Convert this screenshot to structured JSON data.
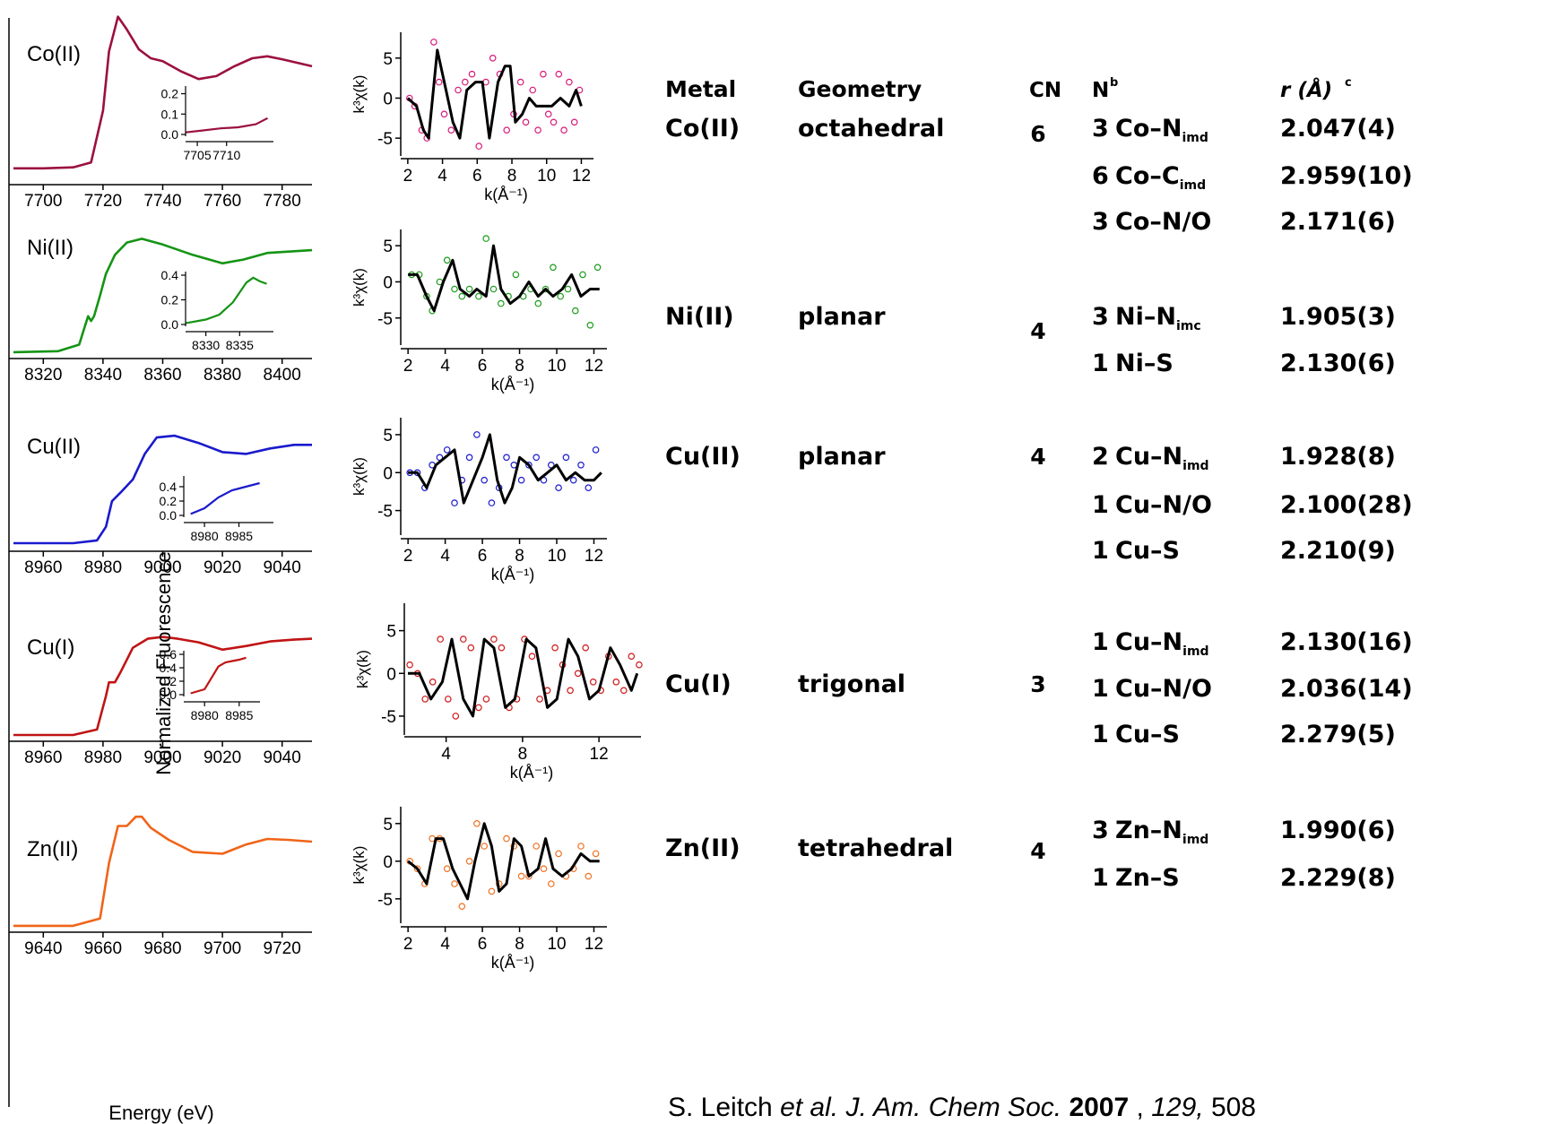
{
  "left_ylabel": "Normalized Fluorescence",
  "left_xlabel": "Energy (eV)",
  "exafs_ylabel": "k³χ(k)",
  "exafs_xlabel": "k(Å⁻¹)",
  "citation": {
    "authors": "S. Leitch",
    "etal": "et al.",
    "journal": "J. Am. Chem Soc.",
    "year": "2007",
    "volume": "129,",
    "pages": "508"
  },
  "table": {
    "headers": {
      "metal": "Metal",
      "geometry": "Geometry",
      "cn": "CN",
      "n": "N",
      "n_sup": "b",
      "r": "r (Å)",
      "r_sup": "c"
    },
    "rows": [
      {
        "metal": "Co(II)",
        "geometry": "octahedral",
        "cn": "6",
        "shells": [
          {
            "n": "3",
            "pair": "Co–N",
            "sub": "imd",
            "r": "2.047(4)"
          },
          {
            "n": "6",
            "pair": "Co–C",
            "sub": "imd",
            "r": "2.959(10)"
          },
          {
            "n": "3",
            "pair": "Co–N/O",
            "sub": "",
            "r": "2.171(6)"
          }
        ]
      },
      {
        "metal": "Ni(II)",
        "geometry": "planar",
        "cn": "4",
        "shells": [
          {
            "n": "3",
            "pair": "Ni–N",
            "sub": "imc",
            "r": "1.905(3)"
          },
          {
            "n": "1",
            "pair": "Ni–S",
            "sub": "",
            "r": "2.130(6)"
          }
        ]
      },
      {
        "metal": "Cu(II)",
        "geometry": "planar",
        "cn": "4",
        "shells": [
          {
            "n": "2",
            "pair": "Cu–N",
            "sub": "imd",
            "r": "1.928(8)"
          },
          {
            "n": "1",
            "pair": "Cu–N/O",
            "sub": "",
            "r": "2.100(28)"
          },
          {
            "n": "1",
            "pair": "Cu–S",
            "sub": "",
            "r": "2.210(9)"
          }
        ]
      },
      {
        "metal": "Cu(I)",
        "geometry": "trigonal",
        "cn": "3",
        "shells": [
          {
            "n": "1",
            "pair": "Cu–N",
            "sub": "imd",
            "r": "2.130(16)"
          },
          {
            "n": "1",
            "pair": "Cu–N/O",
            "sub": "",
            "r": "2.036(14)"
          },
          {
            "n": "1",
            "pair": "Cu–S",
            "sub": "",
            "r": "2.279(5)"
          }
        ]
      },
      {
        "metal": "Zn(II)",
        "geometry": "tetrahedral",
        "cn": "4",
        "shells": [
          {
            "n": "3",
            "pair": "Zn–N",
            "sub": "imd",
            "r": "1.990(6)"
          },
          {
            "n": "1",
            "pair": "Zn–S",
            "sub": "",
            "r": "2.229(8)"
          }
        ]
      }
    ]
  },
  "chart_data": [
    {
      "type": "line",
      "panel": "xanes",
      "label": "Co(II)",
      "color": "#9b1040",
      "xlim": [
        7690,
        7790
      ],
      "xticks": [
        7700,
        7720,
        7740,
        7760,
        7780
      ],
      "x": [
        7690,
        7700,
        7710,
        7716,
        7720,
        7722,
        7725,
        7728,
        7732,
        7736,
        7740,
        7746,
        7752,
        7758,
        7764,
        7770,
        7775,
        7780,
        7790
      ],
      "y": [
        0.02,
        0.02,
        0.03,
        0.08,
        0.6,
        1.2,
        1.55,
        1.42,
        1.22,
        1.13,
        1.1,
        1.0,
        0.92,
        0.95,
        1.05,
        1.13,
        1.15,
        1.12,
        1.05
      ],
      "inset": {
        "xlim": [
          7703,
          7718
        ],
        "ylim": [
          0,
          0.22
        ],
        "xticks": [
          7705,
          7710
        ],
        "yticks": [
          0.0,
          0.1,
          0.2
        ],
        "ytick_labels": [
          "0.0",
          "0.1",
          "0.2"
        ],
        "x": [
          7703,
          7706,
          7709,
          7712,
          7715,
          7717
        ],
        "y": [
          0.01,
          0.02,
          0.03,
          0.035,
          0.05,
          0.08
        ]
      }
    },
    {
      "type": "line",
      "panel": "xanes",
      "label": "Ni(II)",
      "color": "#149414",
      "xlim": [
        8310,
        8410
      ],
      "xticks": [
        8320,
        8340,
        8360,
        8380,
        8400
      ],
      "x": [
        8310,
        8325,
        8332,
        8334,
        8335,
        8336,
        8337,
        8339,
        8341,
        8344,
        8348,
        8353,
        8360,
        8370,
        8380,
        8387,
        8395,
        8410
      ],
      "y": [
        0.02,
        0.03,
        0.1,
        0.3,
        0.4,
        0.35,
        0.4,
        0.62,
        0.85,
        1.05,
        1.18,
        1.22,
        1.16,
        1.05,
        0.96,
        1.0,
        1.07,
        1.1
      ],
      "inset": {
        "xlim": [
          8327,
          8340
        ],
        "ylim": [
          0,
          0.4
        ],
        "xticks": [
          8330,
          8335
        ],
        "yticks": [
          0.0,
          0.2,
          0.4
        ],
        "ytick_labels": [
          "0.0",
          "0.2",
          "0.4"
        ],
        "x": [
          8327,
          8330,
          8332,
          8334,
          8335,
          8336,
          8337,
          8338,
          8339
        ],
        "y": [
          0.01,
          0.04,
          0.08,
          0.18,
          0.26,
          0.34,
          0.38,
          0.35,
          0.33
        ]
      }
    },
    {
      "type": "line",
      "panel": "xanes",
      "label": "Cu(II)",
      "color": "#1a1acc",
      "xlim": [
        8950,
        9050
      ],
      "xticks": [
        8960,
        8980,
        9000,
        9020,
        9040
      ],
      "x": [
        8950,
        8970,
        8978,
        8981,
        8983,
        8986,
        8990,
        8994,
        8998,
        9004,
        9012,
        9020,
        9028,
        9036,
        9044,
        9050
      ],
      "y": [
        0.02,
        0.02,
        0.05,
        0.2,
        0.48,
        0.58,
        0.72,
        1.0,
        1.18,
        1.2,
        1.12,
        1.02,
        1.0,
        1.06,
        1.1,
        1.1
      ],
      "inset": {
        "xlim": [
          8977,
          8990
        ],
        "ylim": [
          0,
          0.5
        ],
        "xticks": [
          8980,
          8985
        ],
        "yticks": [
          0.0,
          0.2,
          0.4
        ],
        "ytick_labels": [
          "0.0",
          "0.2",
          "0.4"
        ],
        "x": [
          8978,
          8980,
          8982,
          8984,
          8986,
          8988
        ],
        "y": [
          0.02,
          0.1,
          0.25,
          0.35,
          0.4,
          0.45
        ]
      }
    },
    {
      "type": "line",
      "panel": "xanes",
      "label": "Cu(I)",
      "color": "#c01414",
      "xlim": [
        8950,
        9050
      ],
      "xticks": [
        8960,
        8980,
        9000,
        9020,
        9040
      ],
      "x": [
        8950,
        8970,
        8978,
        8981,
        8982,
        8984,
        8986,
        8990,
        8995,
        9000,
        9005,
        9012,
        9020,
        9028,
        9036,
        9044,
        9050
      ],
      "y": [
        0.02,
        0.02,
        0.08,
        0.45,
        0.6,
        0.6,
        0.72,
        0.98,
        1.08,
        1.1,
        1.08,
        1.04,
        0.96,
        1.0,
        1.05,
        1.07,
        1.08
      ],
      "inset": {
        "xlim": [
          8977,
          8988
        ],
        "ylim": [
          0,
          0.6
        ],
        "xticks": [
          8980,
          8985
        ],
        "yticks": [
          0.0,
          0.2,
          0.4,
          0.6
        ],
        "ytick_labels": [
          "0.0",
          "0.2",
          "0.4",
          "0.6"
        ],
        "x": [
          8978,
          8980,
          8981,
          8982,
          8983,
          8984,
          8985,
          8986
        ],
        "y": [
          0.02,
          0.08,
          0.25,
          0.42,
          0.48,
          0.5,
          0.52,
          0.55
        ]
      }
    },
    {
      "type": "line",
      "panel": "xanes",
      "label": "Zn(II)",
      "color": "#f06418",
      "xlim": [
        9630,
        9730
      ],
      "xticks": [
        9640,
        9660,
        9680,
        9700,
        9720
      ],
      "x": [
        9630,
        9650,
        9659,
        9662,
        9665,
        9668,
        9671,
        9673,
        9676,
        9682,
        9690,
        9700,
        9708,
        9715,
        9722,
        9730
      ],
      "y": [
        0.02,
        0.02,
        0.1,
        0.7,
        1.1,
        1.1,
        1.2,
        1.2,
        1.08,
        0.95,
        0.82,
        0.8,
        0.9,
        0.96,
        0.95,
        0.93
      ]
    },
    {
      "type": "scatter",
      "panel": "exafs",
      "color": "#d81b7a",
      "xlim": [
        1.8,
        12.7
      ],
      "ylim": [
        -7,
        8
      ],
      "xticks": [
        2,
        4,
        6,
        8,
        10,
        12
      ],
      "yticks": [
        5,
        0,
        -5
      ],
      "fit_x": [
        2.0,
        2.5,
        2.9,
        3.2,
        3.7,
        4.2,
        4.6,
        5.0,
        5.4,
        5.9,
        6.3,
        6.7,
        7.2,
        7.6,
        7.9,
        8.2,
        8.6,
        9.0,
        9.4,
        9.8,
        10.3,
        10.8,
        11.3,
        11.7,
        12.0
      ],
      "fit_y": [
        0,
        -1,
        -4,
        -5,
        6,
        1,
        -3,
        -5,
        1,
        2,
        2,
        -5,
        2,
        4,
        4,
        -3,
        -2,
        0,
        -1,
        -1,
        -1,
        0,
        -1,
        1,
        -1
      ],
      "data_x": [
        2.1,
        2.4,
        2.8,
        3.1,
        3.5,
        3.8,
        4.1,
        4.5,
        4.9,
        5.3,
        5.7,
        6.1,
        6.5,
        6.9,
        7.3,
        7.7,
        8.1,
        8.5,
        8.8,
        9.2,
        9.5,
        9.8,
        10.1,
        10.4,
        10.7,
        11.0,
        11.3,
        11.6,
        11.9
      ],
      "data_y": [
        0,
        -1,
        -4,
        -5,
        7,
        2,
        -2,
        -4,
        1,
        2,
        3,
        -6,
        2,
        5,
        3,
        -4,
        -2,
        2,
        -3,
        1,
        -4,
        3,
        -2,
        -3,
        3,
        -4,
        2,
        -3,
        1
      ]
    },
    {
      "type": "scatter",
      "panel": "exafs",
      "color": "#1a9c1a",
      "xlim": [
        1.8,
        12.7
      ],
      "ylim": [
        -8.5,
        7
      ],
      "xticks": [
        2,
        4,
        6,
        8,
        10,
        12
      ],
      "yticks": [
        5,
        0,
        -5
      ],
      "fit_x": [
        2.0,
        2.5,
        3.0,
        3.4,
        3.9,
        4.4,
        4.8,
        5.3,
        5.7,
        6.2,
        6.6,
        7.0,
        7.5,
        8.0,
        8.5,
        9.0,
        9.4,
        9.8,
        10.3,
        10.8,
        11.3,
        11.8,
        12.3
      ],
      "fit_y": [
        1,
        1,
        -2,
        -4,
        0,
        3,
        -1,
        -2,
        -1,
        -2,
        5,
        -1,
        -3,
        -2,
        0,
        -2,
        -1,
        -2,
        -1,
        1,
        -2,
        -1,
        -1
      ],
      "data_x": [
        2.2,
        2.6,
        3.0,
        3.3,
        3.7,
        4.1,
        4.5,
        4.9,
        5.3,
        5.8,
        6.2,
        6.6,
        7.0,
        7.4,
        7.8,
        8.2,
        8.6,
        9.0,
        9.4,
        9.8,
        10.2,
        10.6,
        11.0,
        11.4,
        11.8,
        12.2
      ],
      "data_y": [
        1,
        1,
        -2,
        -4,
        0,
        3,
        -1,
        -2,
        -1,
        -2,
        6,
        -1,
        -3,
        -2,
        1,
        -2,
        -1,
        -3,
        -1,
        2,
        -2,
        -1,
        -4,
        1,
        -6,
        2
      ]
    },
    {
      "type": "scatter",
      "panel": "exafs",
      "color": "#1a1ad0",
      "xlim": [
        1.8,
        12.7
      ],
      "ylim": [
        -8,
        7
      ],
      "xticks": [
        2,
        4,
        6,
        8,
        10,
        12
      ],
      "yticks": [
        5,
        0,
        -5
      ],
      "fit_x": [
        2.0,
        2.5,
        3.0,
        3.5,
        4.0,
        4.5,
        5.0,
        5.5,
        6.0,
        6.4,
        6.8,
        7.2,
        7.6,
        8.0,
        8.5,
        9.0,
        9.5,
        10.0,
        10.5,
        11.0,
        11.5,
        12.0,
        12.4
      ],
      "fit_y": [
        0,
        0,
        -2,
        1,
        2,
        3,
        -4,
        -1,
        2,
        5,
        -1,
        -4,
        -2,
        2,
        1,
        -1,
        0,
        1,
        -1,
        0,
        -1,
        -1,
        0
      ],
      "data_x": [
        2.1,
        2.5,
        2.9,
        3.3,
        3.7,
        4.1,
        4.5,
        4.9,
        5.3,
        5.7,
        6.1,
        6.5,
        6.9,
        7.3,
        7.7,
        8.1,
        8.5,
        8.9,
        9.3,
        9.7,
        10.1,
        10.5,
        10.9,
        11.3,
        11.7,
        12.1
      ],
      "data_y": [
        0,
        0,
        -2,
        1,
        2,
        3,
        -4,
        -1,
        2,
        5,
        -1,
        -4,
        -2,
        2,
        1,
        -1,
        1,
        2,
        -1,
        1,
        -2,
        2,
        -1,
        1,
        -2,
        3
      ]
    },
    {
      "type": "scatter",
      "panel": "exafs",
      "color": "#d01818",
      "xlim": [
        2,
        14.2
      ],
      "ylim": [
        -7,
        8
      ],
      "xticks": [
        4,
        8,
        12
      ],
      "yticks": [
        5,
        0,
        -5
      ],
      "fit_x": [
        2.0,
        2.6,
        3.2,
        3.8,
        4.3,
        4.9,
        5.4,
        6.0,
        6.5,
        7.1,
        7.6,
        8.2,
        8.7,
        9.3,
        9.8,
        10.4,
        10.9,
        11.5,
        12.0,
        12.6,
        13.1,
        13.7,
        14.0
      ],
      "fit_y": [
        0,
        0,
        -3,
        -1,
        4,
        -3,
        -5,
        4,
        3,
        -4,
        -3,
        4,
        3,
        -4,
        -3,
        4,
        2,
        -3,
        -2,
        3,
        1,
        -2,
        0
      ],
      "data_x": [
        2.1,
        2.5,
        2.9,
        3.3,
        3.7,
        4.1,
        4.5,
        4.9,
        5.3,
        5.7,
        6.1,
        6.5,
        6.9,
        7.3,
        7.7,
        8.1,
        8.5,
        8.9,
        9.3,
        9.7,
        10.1,
        10.5,
        10.9,
        11.3,
        11.7,
        12.1,
        12.5,
        12.9,
        13.3,
        13.7,
        14.1
      ],
      "data_y": [
        1,
        0,
        -3,
        -1,
        4,
        -3,
        -5,
        4,
        3,
        -4,
        -3,
        4,
        3,
        -4,
        -3,
        4,
        2,
        -3,
        -2,
        3,
        1,
        -2,
        0,
        3,
        -1,
        -2,
        2,
        -1,
        -2,
        2,
        1
      ]
    },
    {
      "type": "scatter",
      "panel": "exafs",
      "color": "#f07020",
      "xlim": [
        1.8,
        12.7
      ],
      "ylim": [
        -8,
        7
      ],
      "xticks": [
        2,
        4,
        6,
        8,
        10,
        12
      ],
      "yticks": [
        5,
        0,
        -5
      ],
      "fit_x": [
        2.0,
        2.5,
        3.0,
        3.5,
        3.9,
        4.4,
        4.8,
        5.2,
        5.6,
        6.1,
        6.5,
        6.9,
        7.3,
        7.7,
        8.1,
        8.5,
        9.0,
        9.4,
        9.8,
        10.3,
        10.8,
        11.3,
        11.8,
        12.3
      ],
      "fit_y": [
        0,
        -1,
        -3,
        3,
        3,
        -1,
        -3,
        -5,
        0,
        5,
        2,
        -4,
        -3,
        3,
        2,
        -2,
        -1,
        3,
        -1,
        -2,
        -1,
        1,
        0,
        0
      ],
      "data_x": [
        2.1,
        2.5,
        2.9,
        3.3,
        3.7,
        4.1,
        4.5,
        4.9,
        5.3,
        5.7,
        6.1,
        6.5,
        6.9,
        7.3,
        7.7,
        8.1,
        8.5,
        8.9,
        9.3,
        9.7,
        10.1,
        10.5,
        10.9,
        11.3,
        11.7,
        12.1
      ],
      "data_y": [
        0,
        -1,
        -3,
        3,
        3,
        -1,
        -3,
        -6,
        0,
        5,
        2,
        -4,
        -3,
        3,
        2,
        -2,
        -2,
        2,
        -1,
        -3,
        1,
        -2,
        -1,
        2,
        -2,
        1
      ]
    }
  ]
}
